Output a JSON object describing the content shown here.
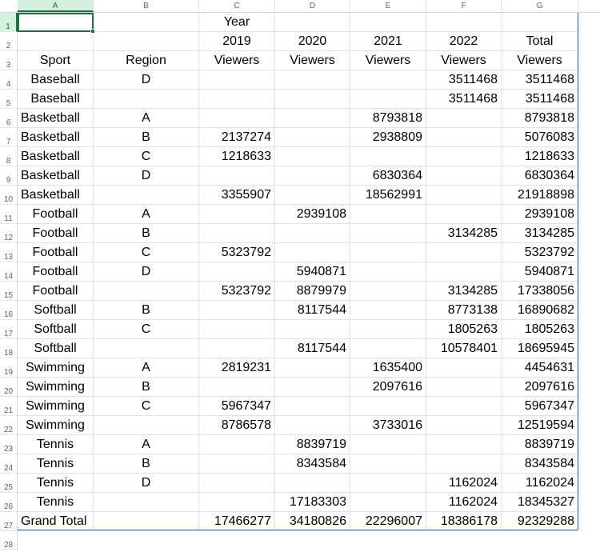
{
  "columns": [
    "A",
    "B",
    "C",
    "D",
    "E",
    "F",
    "G"
  ],
  "selected_column": "A",
  "row_numbers": [
    "1",
    "2",
    "3",
    "4",
    "5",
    "6",
    "7",
    "8",
    "9",
    "10",
    "11",
    "12",
    "13",
    "14",
    "15",
    "16",
    "17",
    "18",
    "19",
    "20",
    "21",
    "22",
    "23",
    "24",
    "25",
    "26",
    "27",
    "28"
  ],
  "selected_row": "1",
  "rows": [
    [
      "",
      "",
      "Year",
      "",
      "",
      "",
      ""
    ],
    [
      "",
      "",
      "2019",
      "2020",
      "2021",
      "2022",
      "Total"
    ],
    [
      "Sport",
      "Region",
      "Viewers",
      "Viewers",
      "Viewers",
      "Viewers",
      "Viewers"
    ],
    [
      "Baseball",
      "D",
      "",
      "",
      "",
      "3511468",
      "3511468"
    ],
    [
      "Baseball",
      "",
      "",
      "",
      "",
      "3511468",
      "3511468"
    ],
    [
      "Basketball",
      "A",
      "",
      "",
      "8793818",
      "",
      "8793818"
    ],
    [
      "Basketball",
      "B",
      "2137274",
      "",
      "2938809",
      "",
      "5076083"
    ],
    [
      "Basketball",
      "C",
      "1218633",
      "",
      "",
      "",
      "1218633"
    ],
    [
      "Basketball",
      "D",
      "",
      "",
      "6830364",
      "",
      "6830364"
    ],
    [
      "Basketball",
      "",
      "3355907",
      "",
      "18562991",
      "",
      "21918898"
    ],
    [
      "Football",
      "A",
      "",
      "2939108",
      "",
      "",
      "2939108"
    ],
    [
      "Football",
      "B",
      "",
      "",
      "",
      "3134285",
      "3134285"
    ],
    [
      "Football",
      "C",
      "5323792",
      "",
      "",
      "",
      "5323792"
    ],
    [
      "Football",
      "D",
      "",
      "5940871",
      "",
      "",
      "5940871"
    ],
    [
      "Football",
      "",
      "5323792",
      "8879979",
      "",
      "3134285",
      "17338056"
    ],
    [
      "Softball",
      "B",
      "",
      "8117544",
      "",
      "8773138",
      "16890682"
    ],
    [
      "Softball",
      "C",
      "",
      "",
      "",
      "1805263",
      "1805263"
    ],
    [
      "Softball",
      "",
      "",
      "8117544",
      "",
      "10578401",
      "18695945"
    ],
    [
      "Swimming",
      "A",
      "2819231",
      "",
      "1635400",
      "",
      "4454631"
    ],
    [
      "Swimming",
      "B",
      "",
      "",
      "2097616",
      "",
      "2097616"
    ],
    [
      "Swimming",
      "C",
      "5967347",
      "",
      "",
      "",
      "5967347"
    ],
    [
      "Swimming",
      "",
      "8786578",
      "",
      "3733016",
      "",
      "12519594"
    ],
    [
      "Tennis",
      "A",
      "",
      "8839719",
      "",
      "",
      "8839719"
    ],
    [
      "Tennis",
      "B",
      "",
      "8343584",
      "",
      "",
      "8343584"
    ],
    [
      "Tennis",
      "D",
      "",
      "",
      "",
      "1162024",
      "1162024"
    ],
    [
      "Tennis",
      "",
      "",
      "17183303",
      "",
      "1162024",
      "18345327"
    ],
    [
      "Grand Total",
      "",
      "17466277",
      "34180826",
      "22296007",
      "18386178",
      "92329288"
    ]
  ],
  "colors": {
    "selection": "#1e7145",
    "pivot_border": "#2f5db8",
    "gridline": "#e1e1e1"
  }
}
